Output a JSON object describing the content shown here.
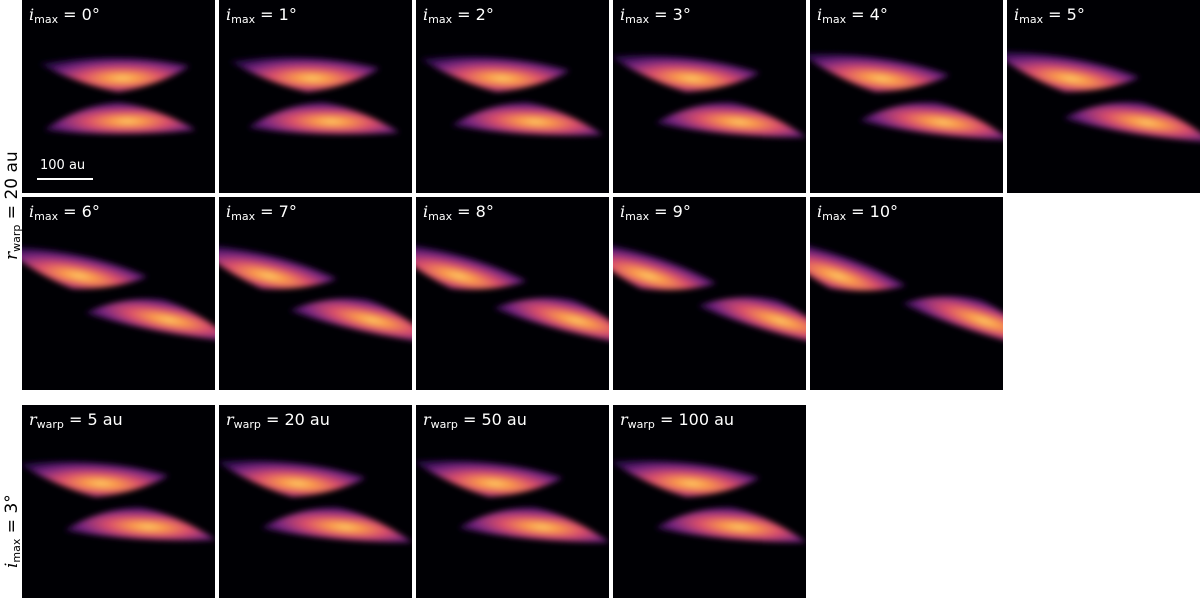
{
  "row_labels": {
    "row1": {
      "var": "r",
      "sub": "warp",
      "text": " = 20 au"
    },
    "row2": {
      "var": "i",
      "sub": "max",
      "text": " = 3°"
    }
  },
  "scale_bar": {
    "label": "100 au"
  },
  "panels": [
    {
      "var": "i",
      "sub": "max",
      "value": " = 0°"
    },
    {
      "var": "i",
      "sub": "max",
      "value": " = 1°"
    },
    {
      "var": "i",
      "sub": "max",
      "value": " = 2°"
    },
    {
      "var": "i",
      "sub": "max",
      "value": " = 3°"
    },
    {
      "var": "i",
      "sub": "max",
      "value": " = 4°"
    },
    {
      "var": "i",
      "sub": "max",
      "value": " = 5°"
    },
    {
      "var": "i",
      "sub": "max",
      "value": " = 6°"
    },
    {
      "var": "i",
      "sub": "max",
      "value": " = 7°"
    },
    {
      "var": "i",
      "sub": "max",
      "value": " = 8°"
    },
    {
      "var": "i",
      "sub": "max",
      "value": " = 9°"
    },
    {
      "var": "i",
      "sub": "max",
      "value": " = 10°"
    },
    {
      "var": "r",
      "sub": "warp",
      "value": " = 5 au"
    },
    {
      "var": "r",
      "sub": "warp",
      "value": " = 20 au"
    },
    {
      "var": "r",
      "sub": "warp",
      "value": " = 50 au"
    },
    {
      "var": "r",
      "sub": "warp",
      "value": " = 100 au"
    }
  ],
  "colors": {
    "background": "#000004",
    "colormap": [
      "#000004",
      "#3b0f70",
      "#8c2981",
      "#de4968",
      "#fe9f6d",
      "#fcfdbf"
    ]
  }
}
